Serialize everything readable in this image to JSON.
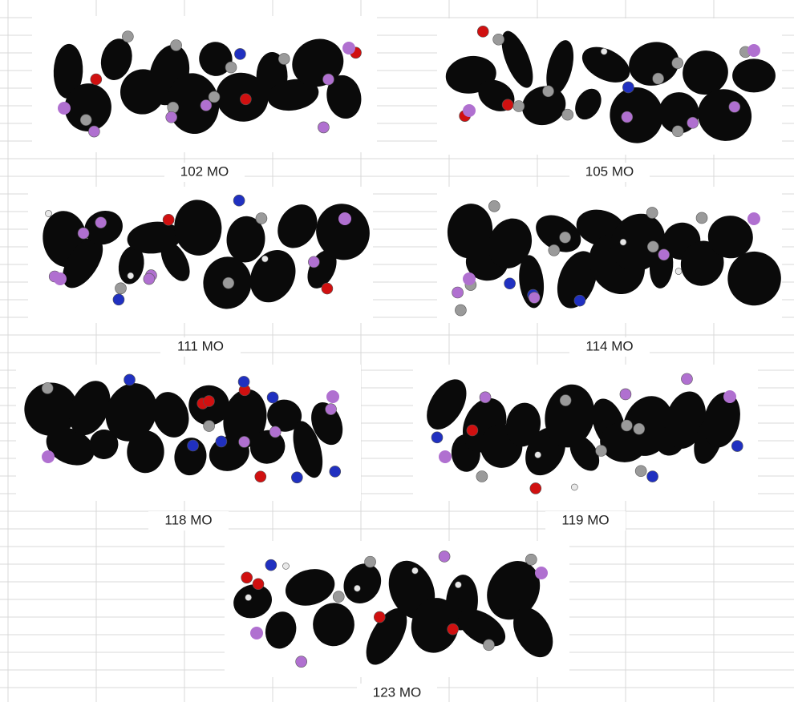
{
  "panels": [
    {
      "label": "102 MO"
    },
    {
      "label": "105 MO"
    },
    {
      "label": "111 MO"
    },
    {
      "label": "114 MO"
    },
    {
      "label": "118 MO"
    },
    {
      "label": "119 MO"
    },
    {
      "label": "123 MO"
    }
  ]
}
